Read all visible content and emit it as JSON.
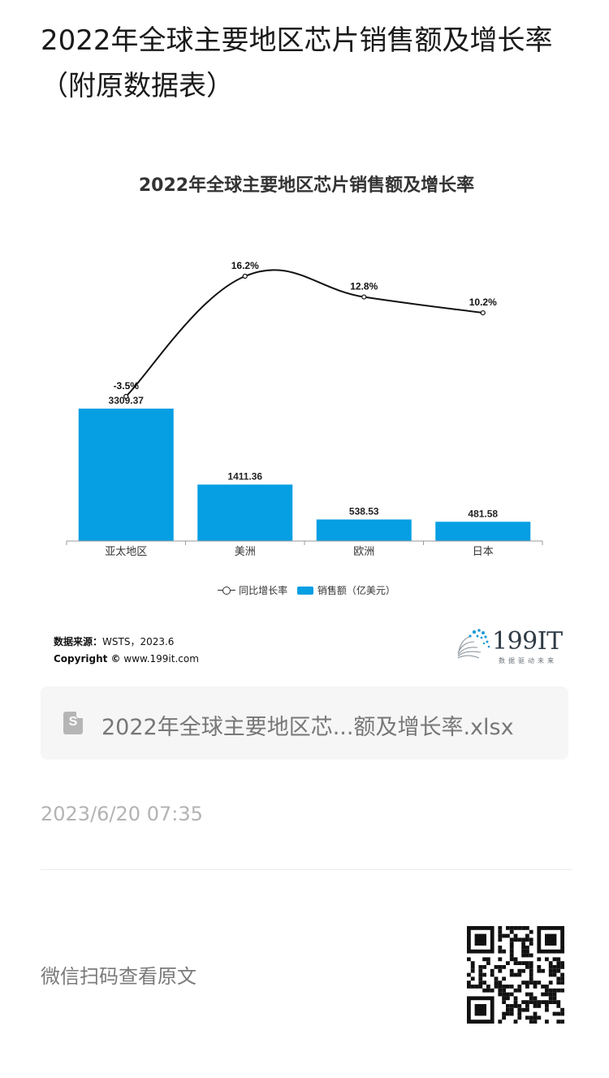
{
  "article": {
    "title": "2022年全球主要地区芯片销售额及增长率（附原数据表）"
  },
  "chart_data": {
    "type": "bar",
    "title": "2022年全球主要地区芯片销售额及增长率",
    "categories": [
      "亚太地区",
      "美洲",
      "欧洲",
      "日本"
    ],
    "series": [
      {
        "name": "销售额（亿美元）",
        "type": "bar",
        "values": [
          3309.37,
          1411.36,
          538.53,
          481.58
        ],
        "labels": [
          "3309.37",
          "1411.36",
          "538.53",
          "481.58"
        ],
        "color": "#069fe3"
      },
      {
        "name": "同比增长率",
        "type": "line",
        "values": [
          -3.5,
          16.2,
          12.8,
          10.2
        ],
        "labels": [
          "-3.5%",
          "16.2%",
          "12.8%",
          "10.2%"
        ],
        "color": "#111111"
      }
    ],
    "legend": [
      "同比增长率",
      "销售额（亿美元）"
    ],
    "legend_position": "bottom",
    "grid": false
  },
  "source": {
    "label": "数据来源：",
    "text": "WSTS，2023.6",
    "copyright_label": "Copyright ©",
    "copyright_site": "www.199it.com"
  },
  "brand": {
    "name": "199IT",
    "tagline": "数据驱动未来",
    "colors": {
      "dot": "#1e9bd7",
      "text": "#2f3b46"
    }
  },
  "attachment": {
    "icon": "spreadsheet-file-icon",
    "icon_letter": "S",
    "file_name": "2022年全球主要地区芯...额及增长率.xlsx"
  },
  "timestamp": "2023/6/20 07:35",
  "footer": {
    "qr_hint": "微信扫码查看原文",
    "qr_icon": "qr-code-icon"
  }
}
